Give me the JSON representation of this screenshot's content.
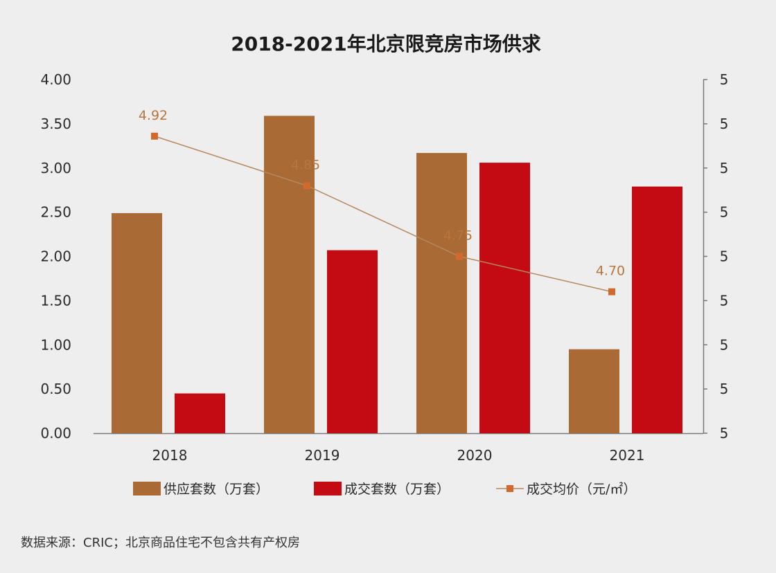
{
  "colors": {
    "supply": "#a96a36",
    "deal": "#c40a13",
    "price_line": "#b38a5e",
    "price_marker": "#d2692c",
    "axis": "#777777"
  },
  "chart_data": {
    "type": "bar",
    "title": "2018-2021年北京限竞房市场供求",
    "categories": [
      "2018",
      "2019",
      "2020",
      "2021"
    ],
    "ylim": [
      0,
      4
    ],
    "y_ticks": [
      "0.00",
      "0.50",
      "1.00",
      "1.50",
      "2.00",
      "2.50",
      "3.00",
      "3.50",
      "4.00"
    ],
    "y2_ticks": [
      "5",
      "5",
      "5",
      "5",
      "5",
      "5",
      "5",
      "5",
      "5"
    ],
    "y2lim": [
      4.5,
      5.0
    ],
    "grid": false,
    "legend_position": "bottom",
    "series": [
      {
        "name": "供应套数（万套）",
        "kind": "bar",
        "axis": "left",
        "values": [
          2.49,
          3.59,
          3.17,
          0.95
        ]
      },
      {
        "name": "成交套数（万套）",
        "kind": "bar",
        "axis": "left",
        "values": [
          0.45,
          2.07,
          3.06,
          2.79
        ]
      },
      {
        "name": "成交均价（元/㎡）",
        "kind": "line",
        "axis": "right",
        "values": [
          4.92,
          4.85,
          4.75,
          4.7
        ],
        "labels": [
          "4.92",
          "4.85",
          "4.75",
          "4.70"
        ]
      }
    ]
  },
  "footer": {
    "source": "数据来源：CRIC；北京商品住宅不包含共有产权房"
  }
}
